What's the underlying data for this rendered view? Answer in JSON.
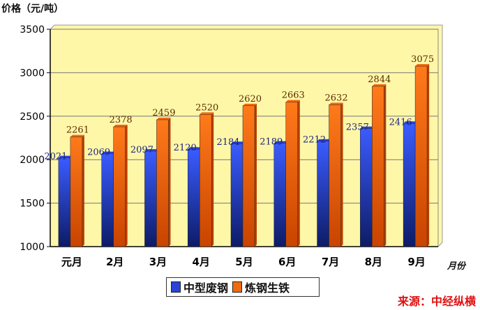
{
  "unit_label": "价格（元/吨）",
  "x_unit": "月份",
  "source": "来源：中经纵横",
  "colors": {
    "plot_bg": "#FFF7A8",
    "series1": "#2A44D8",
    "series1_dark": "#142178",
    "series2": "#F06A10",
    "series2_dark": "#B83E00",
    "label1": "#1a237e",
    "label2": "#5a2a00"
  },
  "chart_data": {
    "type": "bar",
    "categories": [
      "元月",
      "2月",
      "3月",
      "4月",
      "5月",
      "6月",
      "7月",
      "8月",
      "9月"
    ],
    "series": [
      {
        "name": "中型废钢",
        "values": [
          2021,
          2069,
          2097,
          2120,
          2184,
          2189,
          2212,
          2357,
          2416
        ]
      },
      {
        "name": "炼钢生铁",
        "values": [
          2261,
          2378,
          2459,
          2520,
          2620,
          2663,
          2632,
          2844,
          3075
        ]
      }
    ],
    "ylim": [
      1000,
      3500
    ],
    "yticks": [
      1000,
      1500,
      2000,
      2500,
      3000,
      3500
    ],
    "grid": true,
    "legend": "bottom"
  }
}
